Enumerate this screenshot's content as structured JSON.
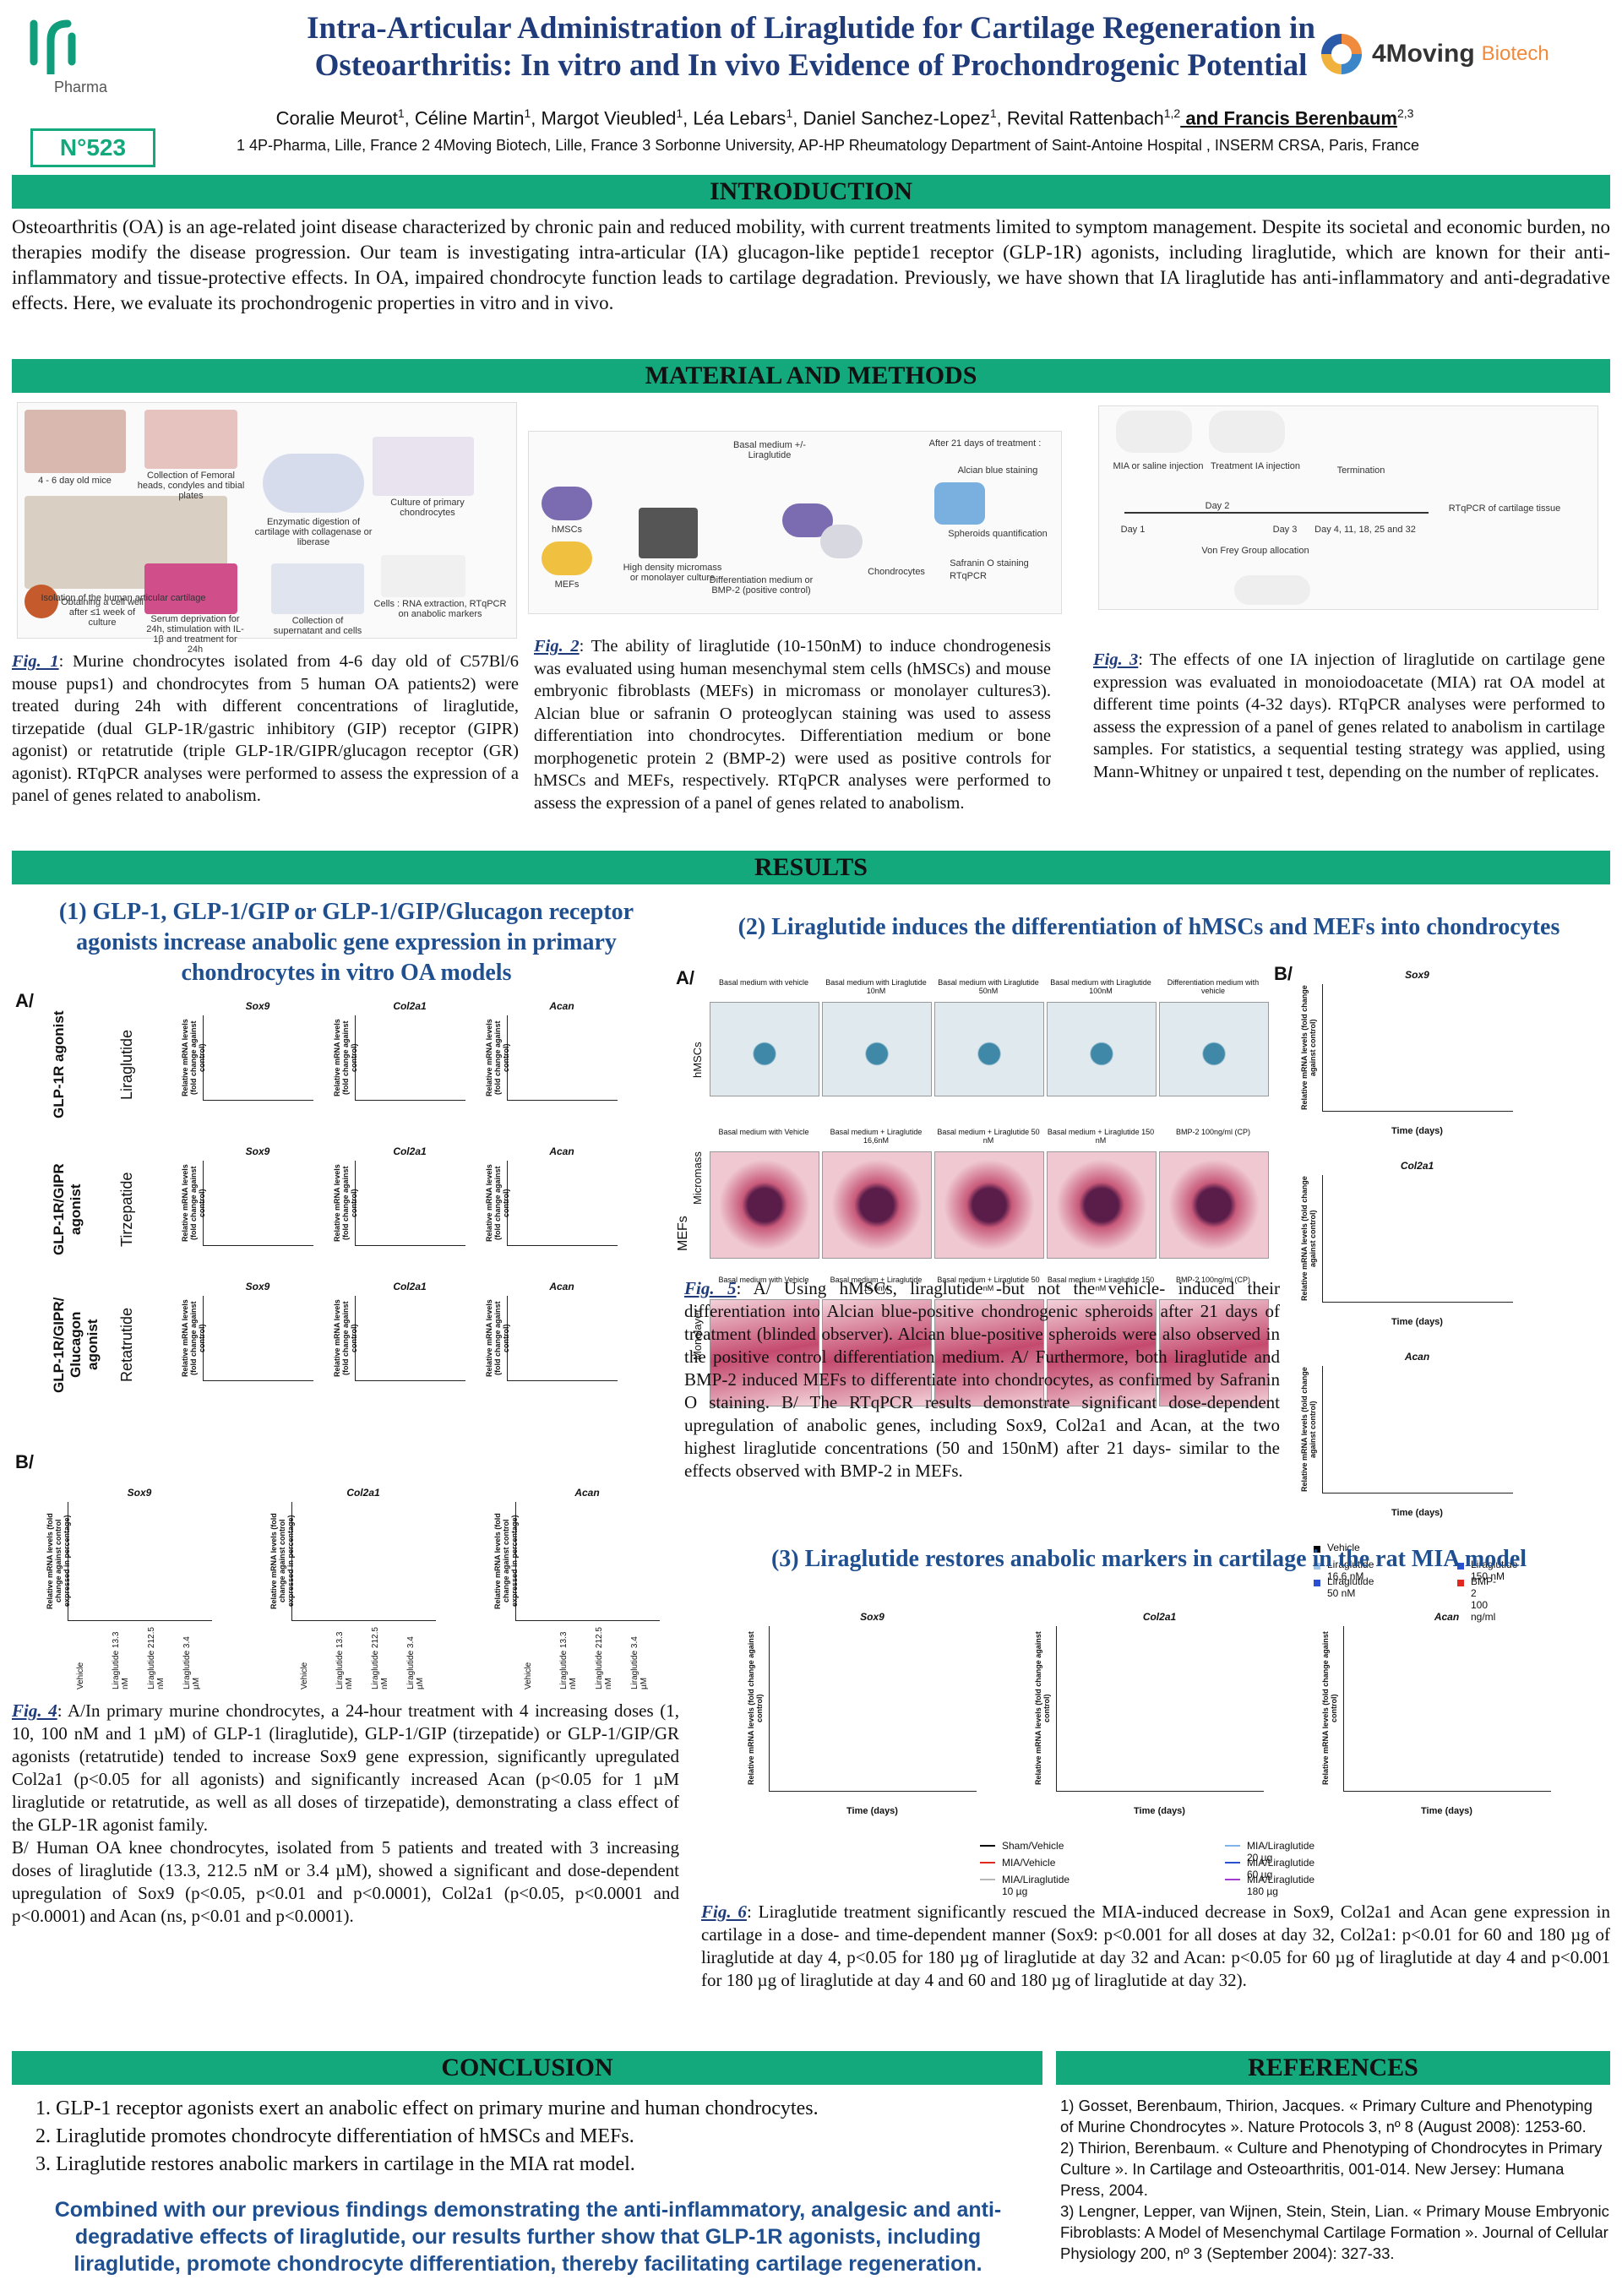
{
  "header": {
    "logo_left": "Pharma",
    "logo_right": "4Moving",
    "logo_right_sub": "Biotech",
    "title_line1": "Intra-Articular Administration of Liraglutide for Cartilage Regeneration in",
    "title_line2": "Osteoarthritis: In vitro and In vivo Evidence of Prochondrogenic Potential",
    "poster_number": "N°523",
    "authors": [
      {
        "text": "Coralie Meurot",
        "sup": "1"
      },
      {
        "text": ", Céline Martin",
        "sup": "1"
      },
      {
        "text": ", Margot Vieubled",
        "sup": "1"
      },
      {
        "text": ",  Léa Lebars",
        "sup": "1"
      },
      {
        "text": ", Daniel Sanchez-Lopez",
        "sup": "1"
      },
      {
        "text": ", Revital Rattenbach",
        "sup": "1,2"
      },
      {
        "text": " and Francis Berenbaum",
        "sup": "2,3"
      }
    ],
    "affiliations": "1  4P-Pharma, Lille, France 2 4Moving Biotech, Lille, France 3 Sorbonne University, AP-HP Rheumatology Department of Saint-Antoine Hospital , INSERM CRSA, Paris, France"
  },
  "introduction": {
    "heading": "INTRODUCTION",
    "text": "Osteoarthritis (OA) is an age-related joint disease characterized by chronic pain and reduced mobility, with current treatments limited to symptom management. Despite its societal and economic burden, no therapies modify the disease progression. Our team is investigating intra-articular (IA) glucagon-like peptide1 receptor (GLP-1R) agonists, including liraglutide, which are known for their anti-inflammatory and tissue-protective effects. In OA, impaired chondrocyte function leads to cartilage degradation. Previously, we have shown that IA liraglutide has anti-inflammatory and anti-degradative effects. Here, we evaluate its prochondrogenic properties in vitro and in vivo."
  },
  "methods": {
    "heading": "MATERIAL AND METHODS",
    "fig1": {
      "labels": [
        "4 - 6 day old mice",
        "Collection of Femoral heads, condyles and tibial plates",
        "Enzymatic digestion of cartilage with collagenase or liberase",
        "Culture of primary chondrocytes",
        "Isolation of the human articular cartilage",
        "Obtaining a cell well after ≤1 week of culture",
        "Serum deprivation for 24h, stimulation with IL-1β and treatment for 24h",
        "Collection of supernatant and cells",
        "Cells : RNA extraction, RTqPCR on anabolic markers"
      ],
      "caption_label": "Fig. 1",
      "caption": ": Murine chondrocytes isolated from 4-6 day old of C57Bl/6 mouse pups1) and chondrocytes from 5 human OA patients2) were treated during 24h with different concentrations of liraglutide, tirzepatide (dual GLP-1R/gastric inhibitory (GIP) receptor (GIPR) agonist) or retatrutide (triple GLP-1R/GIPR/glucagon receptor (GR) agonist). RTqPCR analyses were performed to assess the expression of a panel of genes related to anabolism."
    },
    "fig2": {
      "labels": [
        "Basal medium +/- Liraglutide",
        "hMSCs",
        "MEFs",
        "High density micromass or monolayer culture",
        "Differentiation medium or BMP-2 (positive control)",
        "Chondrocytes",
        "After 21 days of treatment :",
        "Alcian blue staining",
        "Spheroids quantification",
        "Safranin O staining",
        "RTqPCR"
      ],
      "caption_label": "Fig. 2",
      "caption": ": The ability of liraglutide (10-150nM) to induce chondrogenesis was evaluated using human mesenchymal stem cells (hMSCs) and mouse embryonic fibroblasts (MEFs) in micromass or monolayer cultures3). Alcian blue or safranin O proteoglycan staining was used to assess differentiation into chondrocytes. Differentiation medium or bone morphogenetic protein 2 (BMP-2) were used as positive controls for hMSCs and MEFs, respectively. RTqPCR analyses were performed to assess the expression of a panel of genes related to anabolism."
    },
    "fig3": {
      "labels": [
        "MIA or saline injection",
        "Treatment IA injection",
        "Termination",
        "Day 1",
        "Day 2",
        "Day 3",
        "Day 4, 11, 18, 25 and 32",
        "Von Frey Group allocation",
        "RTqPCR of cartilage tissue"
      ],
      "caption_label": "Fig. 3",
      "caption": ": The effects of one IA injection of liraglutide on cartilage gene expression was evaluated in monoiodoacetate (MIA) rat OA model at different time points (4-32 days). RTqPCR analyses were performed to assess the expression of a panel of genes related to anabolism in cartilage samples. For statistics, a sequential testing strategy was applied, using Mann-Whitney or unpaired t test, depending on the number of replicates."
    }
  },
  "results": {
    "heading": "RESULTS",
    "section1": {
      "heading": "(1) GLP-1, GLP-1/GIP or GLP-1/GIP/Glucagon receptor agonists increase anabolic gene expression in primary chondrocytes in vitro OA models",
      "panel_a": "A/",
      "panel_b": "B/",
      "genes": [
        "Sox9",
        "Col2a1",
        "Acan"
      ],
      "rows": [
        {
          "group": "GLP-1R agonist",
          "drug": "Liraglutide"
        },
        {
          "group": "GLP-1R/GIPR agonist",
          "drug": "Tirzepatide"
        },
        {
          "group": "GLP-1R/GIPR/ Glucagon agonist",
          "drug": "Retatrutide"
        }
      ],
      "y_label_a": "Relative mRNA levels (fold change against control)",
      "y_label_b": "Relative mRNA levels (fold change against control expressed in percentage)",
      "b_categories": [
        "Vehicle",
        "Liraglutide 13.3 nM",
        "Liraglutide 212.5 nM",
        "Liraglutide 3.4 µM"
      ],
      "caption_label": "Fig. 4",
      "caption": ": A/In primary murine chondrocytes, a 24-hour treatment with 4 increasing doses (1, 10, 100 nM and 1 µM) of GLP-1 (liraglutide), GLP-1/GIP (tirzepatide) or GLP-1/GIP/GR agonists (retatrutide) tended to increase Sox9 gene expression, significantly upregulated Col2a1 (p<0.05 for all agonists) and significantly increased Acan (p<0.05 for 1 µM liraglutide or retatrutide, as well as all doses of tirzepatide), demonstrating a class effect of the GLP-1R agonist family.",
      "caption_b": "B/ Human OA knee chondrocytes, isolated from 5 patients and treated with 3 increasing doses of liraglutide (13.3, 212.5 nM or 3.4 µM), showed a significant and dose-dependent upregulation of Sox9 (p<0.05, p<0.01 and p<0.0001), Col2a1 (p<0.05, p<0.0001 and p<0.0001) and Acan (ns, p<0.01 and p<0.0001)."
    },
    "section2": {
      "heading": "(2) Liraglutide induces the differentiation of hMSCs and MEFs into chondrocytes",
      "panel_a": "A/",
      "panel_b": "B/",
      "row_labels": [
        "hMSCs",
        "Micromass",
        "Monolayer",
        "MEFs"
      ],
      "image_captions": [
        [
          "Basal medium with vehicle",
          "Basal medium with Liraglutide 10nM",
          "Basal medium with Liraglutide 50nM",
          "Basal medium with Liraglutide 100nM",
          "Differentiation medium with vehicle"
        ],
        [
          "Basal medium with Vehicle",
          "Basal medium + Liraglutide 16,6nM",
          "Basal medium + Liraglutide 50 nM",
          "Basal medium + Liraglutide 150 nM",
          "BMP-2 100ng/ml (CP)"
        ],
        [
          "Basal medium with Vehicle",
          "Basal medium + Liraglutide 16,6nM",
          "Basal medium + Liraglutide 50 nM",
          "Basal medium + Liraglutide 150 nM",
          "BMP-2 100ng/ml (CP)"
        ]
      ],
      "genes": [
        "Sox9",
        "Col2a1",
        "Acan"
      ],
      "y_label": "Relative mRNA levels (fold change against control)",
      "x_label": "Time (days)",
      "legend": [
        "Vehicle",
        "Liraglutide 16.6 nM",
        "Liraglutide 50 nM",
        "Liraglutide 150 nM",
        "BMP-2 100 ng/ml"
      ],
      "caption_label": "Fig. 5",
      "caption": ": A/ Using hMSCs, liraglutide -but not the vehicle- induced their differentiation into Alcian blue-positive chondrogenic spheroids after 21 days of treatment (blinded observer). Alcian blue-positive spheroids were also observed in the positive control differentiation medium. A/ Furthermore, both liraglutide and BMP-2 induced MEFs to differentiate into chondrocytes, as confirmed by Safranin O staining. B/ The RTqPCR results demonstrate significant dose-dependent upregulation of anabolic genes, including Sox9, Col2a1 and Acan, at the two highest liraglutide concentrations (50 and 150nM) after 21 days- similar to the effects observed with BMP-2 in MEFs."
    },
    "section3": {
      "heading": "(3) Liraglutide restores anabolic markers in cartilage in the rat MIA model",
      "genes": [
        "Sox9",
        "Col2a1",
        "Acan"
      ],
      "y_label": "Relative mRNA levels (fold change against control)",
      "x_label": "Time (days)",
      "legend": [
        "Sham/Vehicle",
        "MIA/Vehicle",
        "MIA/Liraglutide 10 µg",
        "MIA/Liraglutide 20 µg",
        "MIA/Liraglutide 60 µg",
        "MIA/Liraglutide 180 µg"
      ],
      "legend_colors": [
        "#000000",
        "#e0281e",
        "#b8b8b8",
        "#7fb4e8",
        "#2a4fd0",
        "#a23cd0"
      ],
      "caption_label": "Fig. 6",
      "caption": ": Liraglutide treatment significantly rescued the MIA-induced decrease in Sox9, Col2a1 and Acan gene expression in cartilage in a dose- and time-dependent manner (Sox9: p<0.001 for all doses at day 32, Col2a1: p<0.01 for 60 and 180 µg of liraglutide at day 4, p<0.05 for 180 µg of liraglutide at day 32 and Acan: p<0.05 for 60 µg of liraglutide at day 4 and p<0.001 for 180 µg of liraglutide at day 4 and 60 and 180 µg of liraglutide at day 32)."
    }
  },
  "conclusion": {
    "heading": "CONCLUSION",
    "items": [
      "GLP-1 receptor agonists exert an anabolic effect on primary murine and human chondrocytes.",
      "Liraglutide promotes chondrocyte differentiation of hMSCs and MEFs.",
      "Liraglutide restores anabolic markers in cartilage in the MIA rat model."
    ],
    "statement": "Combined with our previous findings demonstrating the anti-inflammatory, analgesic and anti-degradative effects of liraglutide, our results further show that GLP-1R agonists, including liraglutide, promote chondrocyte differentiation, thereby facilitating cartilage regeneration."
  },
  "references": {
    "heading": "REFERENCES",
    "items": [
      "1) Gosset, Berenbaum, Thirion, Jacques. « Primary Culture and Phenotyping of Murine Chondrocytes ». Nature Protocols 3, nº 8 (August 2008): 1253-60.",
      "2) Thirion, Berenbaum. « Culture and Phenotyping of Chondrocytes in Primary Culture ». In Cartilage and Osteoarthritis, 001-014. New Jersey: Humana Press, 2004.",
      "3) Lengner, Lepper, van Wijnen, Stein, Stein, Lian. « Primary Mouse Embryonic Fibroblasts: A Model of Mesenchymal Cartilage Formation ». Journal of Cellular Physiology 200, nº 3 (September 2004): 327-33."
    ]
  }
}
